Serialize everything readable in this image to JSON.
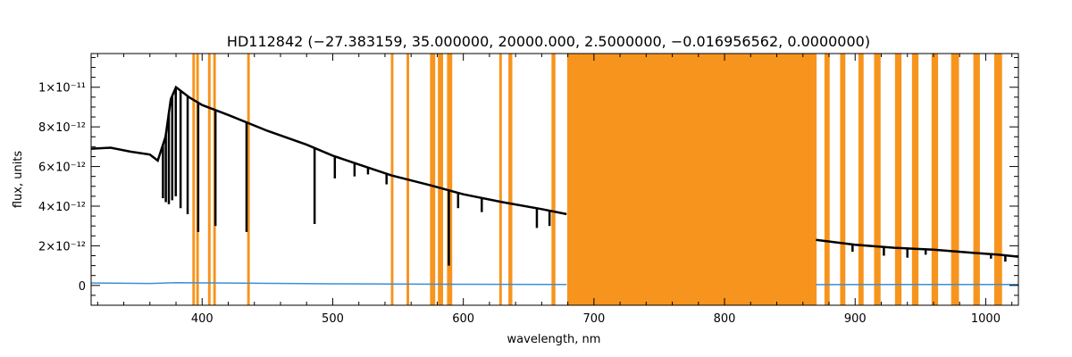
{
  "chart_data": {
    "type": "line",
    "title": "HD112842   (−27.383159, 35.000000, 20000.000, 2.5000000, −0.016956562, 0.0000000)",
    "xlabel": "wavelength, nm",
    "ylabel": "flux, units",
    "xlim": [
      315,
      1025
    ],
    "ylim": [
      -1e-12,
      1.17e-11
    ],
    "x_ticks": [
      400,
      500,
      600,
      700,
      800,
      900,
      1000
    ],
    "y_ticks": [
      {
        "value": 0,
        "label": "0"
      },
      {
        "value": 2e-12,
        "label": "2×10⁻¹²"
      },
      {
        "value": 4e-12,
        "label": "4×10⁻¹²"
      },
      {
        "value": 6e-12,
        "label": "6×10⁻¹²"
      },
      {
        "value": 8e-12,
        "label": "8×10⁻¹²"
      },
      {
        "value": 1e-11,
        "label": "1×10⁻¹¹"
      }
    ],
    "colors": {
      "flux": "#000000",
      "error": "#3a8fd9",
      "mask": "#f7941d"
    },
    "masked_bands": [
      [
        392.5,
        394.5
      ],
      [
        395.5,
        397.5
      ],
      [
        404.5,
        406.5
      ],
      [
        408.5,
        410.5
      ],
      [
        434.5,
        436.5
      ],
      [
        544.5,
        546.5
      ],
      [
        556.5,
        558.5
      ],
      [
        574.5,
        578.5
      ],
      [
        580.5,
        584.5
      ],
      [
        587.5,
        591.5
      ],
      [
        627.5,
        629.5
      ],
      [
        634.5,
        637.5
      ],
      [
        667.5,
        670.5
      ],
      [
        679.5,
        870.5
      ],
      [
        876.5,
        880.5
      ],
      [
        888.5,
        892.5
      ],
      [
        902.5,
        906.5
      ],
      [
        914.5,
        919.5
      ],
      [
        930.5,
        935.5
      ],
      [
        943.5,
        948.5
      ],
      [
        958.5,
        963.5
      ],
      [
        973.5,
        979.5
      ],
      [
        990.5,
        995.5
      ],
      [
        1006.5,
        1012.5
      ]
    ],
    "series": [
      {
        "kind": "flux",
        "segments": [
          [
            [
              315,
              6.9e-12
            ],
            [
              330,
              6.95e-12
            ],
            [
              345,
              6.75e-12
            ],
            [
              360,
              6.6e-12
            ],
            [
              366,
              6.3e-12
            ],
            [
              372,
              7.5e-12
            ],
            [
              376,
              9.4e-12
            ],
            [
              380,
              1e-11
            ],
            [
              390,
              9.5e-12
            ],
            [
              400,
              9.1e-12
            ],
            [
              420,
              8.6e-12
            ],
            [
              450,
              7.8e-12
            ],
            [
              480,
              7.1e-12
            ],
            [
              500,
              6.55e-12
            ],
            [
              520,
              6.1e-12
            ],
            [
              545,
              5.55e-12
            ],
            [
              575,
              5.05e-12
            ],
            [
              600,
              4.6e-12
            ],
            [
              630,
              4.2e-12
            ],
            [
              660,
              3.85e-12
            ],
            [
              679,
              3.6e-12
            ]
          ],
          [
            [
              870,
              2.3e-12
            ],
            [
              900,
              2.05e-12
            ],
            [
              930,
              1.9e-12
            ],
            [
              960,
              1.8e-12
            ],
            [
              990,
              1.65e-12
            ],
            [
              1010,
              1.55e-12
            ],
            [
              1025,
              1.45e-12
            ]
          ]
        ],
        "absorption_lines": [
          [
            370.0,
            4.4e-12
          ],
          [
            372.2,
            4.2e-12
          ],
          [
            374.5,
            4.1e-12
          ],
          [
            377.1,
            4.3e-12
          ],
          [
            379.8,
            4.5e-12
          ],
          [
            383.5,
            3.9e-12
          ],
          [
            388.9,
            3.6e-12
          ],
          [
            397.0,
            2.7e-12
          ],
          [
            410.2,
            3e-12
          ],
          [
            434.0,
            2.7e-12
          ],
          [
            486.1,
            3.1e-12
          ],
          [
            501.6,
            5.4e-12
          ],
          [
            516.7,
            5.5e-12
          ],
          [
            527.0,
            5.6e-12
          ],
          [
            541.2,
            5.1e-12
          ],
          [
            588.9,
            1e-12
          ],
          [
            596.0,
            3.9e-12
          ],
          [
            614.1,
            3.7e-12
          ],
          [
            656.3,
            2.9e-12
          ],
          [
            666.0,
            3e-12
          ],
          [
            898.0,
            1.7e-12
          ],
          [
            922.0,
            1.5e-12
          ],
          [
            940.0,
            1.4e-12
          ],
          [
            954.0,
            1.55e-12
          ],
          [
            1004.0,
            1.35e-12
          ],
          [
            1015.0,
            1.2e-12
          ]
        ]
      },
      {
        "kind": "error",
        "segments": [
          [
            [
              315,
              1.2e-13
            ],
            [
              360,
              1e-13
            ],
            [
              380,
              1.4e-13
            ],
            [
              420,
              1.2e-13
            ],
            [
              500,
              8e-14
            ],
            [
              600,
              6e-14
            ],
            [
              679,
              5e-14
            ]
          ],
          [
            [
              870,
              4e-14
            ],
            [
              950,
              5e-14
            ],
            [
              1025,
              5e-14
            ]
          ]
        ]
      }
    ]
  }
}
